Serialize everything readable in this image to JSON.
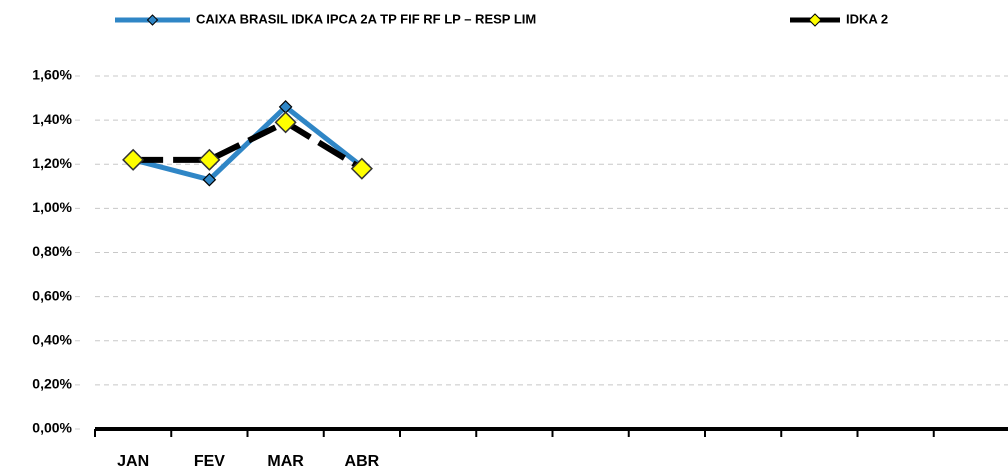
{
  "chart_data": {
    "type": "line",
    "categories": [
      "JAN",
      "FEV",
      "MAR",
      "ABR",
      null,
      null,
      null,
      null,
      null,
      null,
      null,
      null
    ],
    "series": [
      {
        "name": "CAIXA BRASIL IDKA IPCA 2A TP FIF RF LP – RESP LIM",
        "color": "#2f86c6",
        "marker_color": "#2f86c6",
        "values": [
          1.22,
          1.13,
          1.46,
          1.19,
          null,
          null,
          null,
          null,
          null,
          null,
          null,
          null
        ]
      },
      {
        "name": "IDKA 2",
        "color": "#000000",
        "marker_color": "#ffff00",
        "values": [
          1.22,
          1.22,
          1.39,
          1.18,
          null,
          null,
          null,
          null,
          null,
          null,
          null,
          null
        ]
      }
    ],
    "ylim": [
      0,
      1.6
    ],
    "yticks": [
      {
        "value": 0,
        "label": "0,00%"
      },
      {
        "value": 0.2,
        "label": "0,20%"
      },
      {
        "value": 0.4,
        "label": "0,40%"
      },
      {
        "value": 0.6,
        "label": "0,60%"
      },
      {
        "value": 0.8,
        "label": "0,80%"
      },
      {
        "value": 1.0,
        "label": "1,00%"
      },
      {
        "value": 1.2,
        "label": "1,20%"
      },
      {
        "value": 1.4,
        "label": "1,40%"
      },
      {
        "value": 1.6,
        "label": "1,60%"
      }
    ],
    "grid": true,
    "legend": "top"
  }
}
